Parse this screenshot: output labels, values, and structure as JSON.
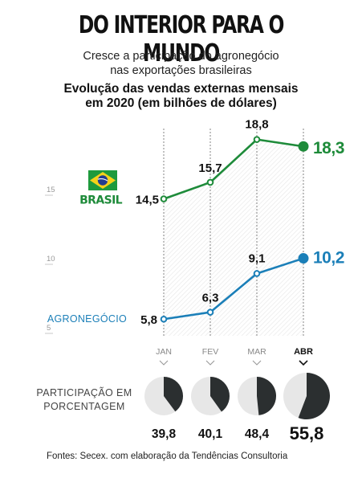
{
  "title": "DO INTERIOR PARA O MUNDO",
  "subtitle_line1": "Cresce a participação do agronegócio",
  "subtitle_line2": "nas exportações brasileiras",
  "chart_heading_line1": "Evolução das vendas externas mensais",
  "chart_heading_line2": "em 2020 (em bilhões de dólares)",
  "participation_label_line1": "PARTICIPAÇÃO EM",
  "participation_label_line2": "PORCENTAGEM",
  "source": "Fontes: Secex. com elaboração da Tendências Consultoria",
  "colors": {
    "brasil": "#1e8b3a",
    "agro": "#1b7fb8",
    "pie_dark": "#2b2f30",
    "pie_light": "#e7e7e7"
  },
  "flag_icon": "brazil-flag-icon",
  "chart_data": {
    "type": "line",
    "categories": [
      "JAN",
      "FEV",
      "MAR",
      "ABR"
    ],
    "highlight_category": "ABR",
    "y_ticks": [
      5,
      10,
      15
    ],
    "ylim": [
      5,
      20
    ],
    "series": [
      {
        "name": "BRASIL",
        "values": [
          14.5,
          15.7,
          18.8,
          18.3
        ],
        "labels": [
          "14,5",
          "15,7",
          "18,8",
          "18,3"
        ]
      },
      {
        "name": "AGRONEGÓCIO",
        "values": [
          5.8,
          6.3,
          9.1,
          10.2
        ],
        "labels": [
          "5,8",
          "6,3",
          "9,1",
          "10,2"
        ]
      }
    ],
    "participation": {
      "values": [
        39.8,
        40.1,
        48.4,
        55.8
      ],
      "labels": [
        "39,8",
        "40,1",
        "48,4",
        "55,8"
      ]
    }
  }
}
